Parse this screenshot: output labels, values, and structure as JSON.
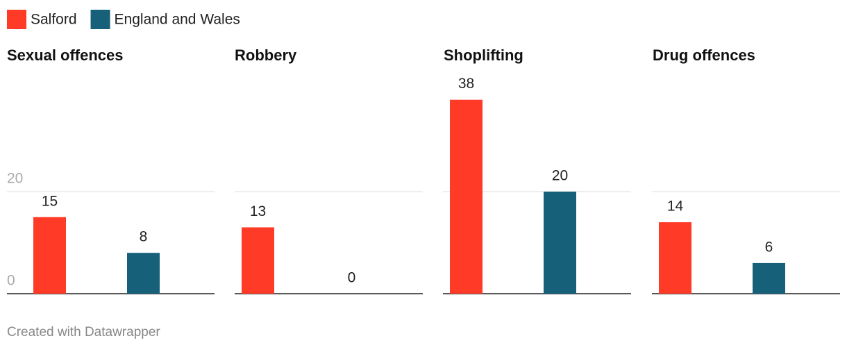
{
  "chart_data": {
    "type": "bar",
    "categories": [
      "Sexual offences",
      "Robbery",
      "Shoplifting",
      "Drug offences"
    ],
    "series": [
      {
        "name": "Salford",
        "color": "#ff3b28",
        "values": [
          15,
          13,
          38,
          14
        ]
      },
      {
        "name": "England and Wales",
        "color": "#17607a",
        "values": [
          8,
          0,
          20,
          6
        ]
      }
    ],
    "ylim": [
      0,
      40
    ],
    "yticks": [
      0,
      20
    ],
    "grid": true
  },
  "footer": "Created with Datawrapper"
}
